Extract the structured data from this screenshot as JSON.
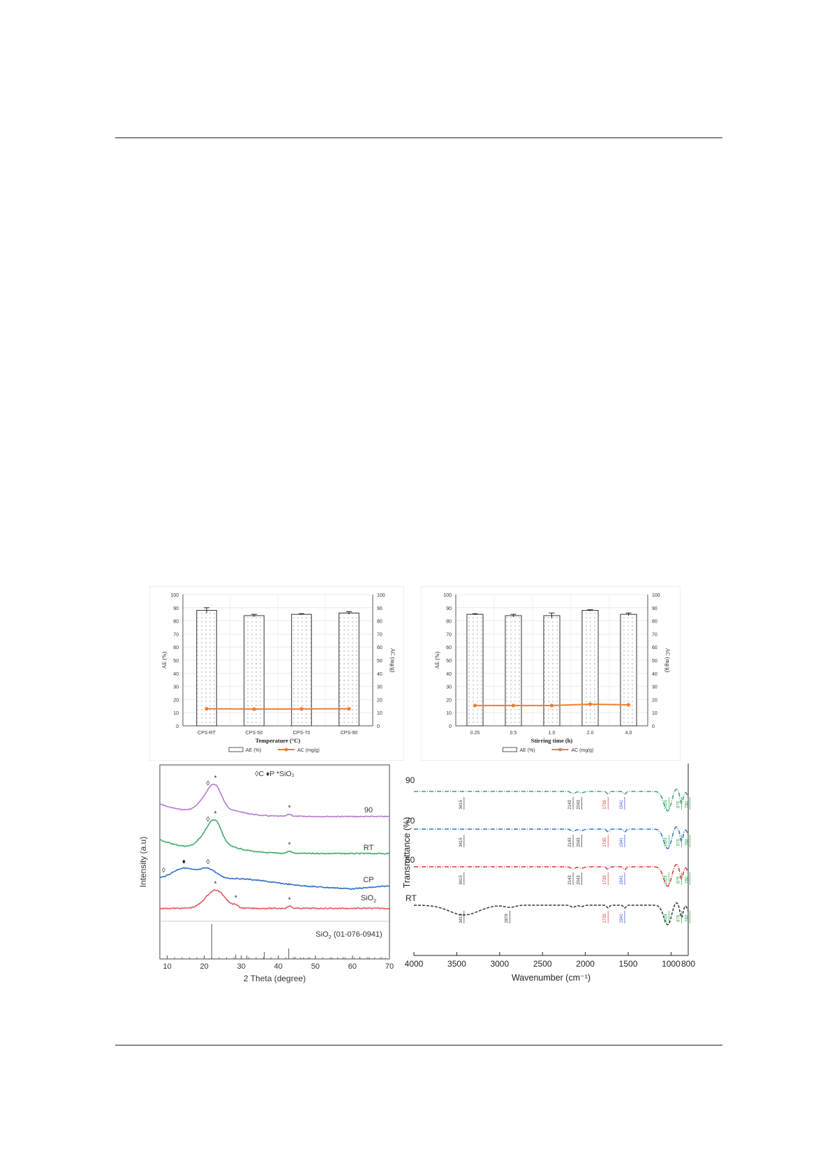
{
  "colors": {
    "bar_fill": "#ffffff",
    "bar_dots": "#9a9a9a",
    "bar_edge": "#333333",
    "ac_line": "#ed7d31",
    "xrd_90": "#b57bd6",
    "xrd_rt": "#3daa6a",
    "xrd_cp": "#2f6fc6",
    "xrd_sio2": "#e4585a",
    "xrd_ref": "#555555",
    "ftir_90": "#3a9e6e",
    "ftir_70": "#2f6fc6",
    "ftir_50": "#e03030",
    "ftir_rt": "#333333"
  },
  "chart_data": [
    {
      "id": "a",
      "type": "bar",
      "categories": [
        "CPS-RT",
        "CPS-50",
        "CPS-70",
        "CPS-90"
      ],
      "xlabel": "Temperature (°C)",
      "ylabel": "AE (%)",
      "y2label": "AC (mg/g)",
      "ylim": [
        0,
        100
      ],
      "y2lim": [
        0,
        100
      ],
      "yticks": [
        "0",
        "10",
        "20",
        "30",
        "40",
        "50",
        "60",
        "70",
        "80",
        "90",
        "100"
      ],
      "series": [
        {
          "name": "AE (%)",
          "kind": "bar",
          "values": [
            88,
            84,
            85,
            86
          ],
          "errors": [
            2,
            1,
            0.5,
            1
          ]
        },
        {
          "name": "AC (mg/g)",
          "kind": "line",
          "axis": "right",
          "values": [
            13,
            12.8,
            12.9,
            13
          ]
        }
      ],
      "legend": "bottom"
    },
    {
      "id": "b",
      "type": "bar",
      "categories": [
        "0.25",
        "0.5",
        "1.0",
        "2.0",
        "4.0"
      ],
      "xlabel": "Stirring time (h)",
      "ylabel": "AE (%)",
      "y2label": "AC (mg/g)",
      "ylim": [
        0,
        100
      ],
      "y2lim": [
        0,
        100
      ],
      "yticks": [
        "0",
        "10",
        "20",
        "30",
        "40",
        "50",
        "60",
        "70",
        "80",
        "90",
        "100"
      ],
      "series": [
        {
          "name": "AE (%)",
          "kind": "bar",
          "values": [
            85,
            84,
            84,
            88,
            85
          ],
          "errors": [
            0.5,
            1,
            2,
            0.5,
            1
          ]
        },
        {
          "name": "AC (mg/g)",
          "kind": "line",
          "axis": "right",
          "values": [
            15.5,
            15.5,
            15.5,
            16.5,
            16
          ]
        }
      ],
      "legend": "bottom"
    },
    {
      "id": "c",
      "type": "line",
      "xlabel": "2 Theta (degree)",
      "ylabel": "Intensity (a.u)",
      "xlim": [
        8,
        70
      ],
      "xticks": [
        "10",
        "20",
        "30",
        "40",
        "50",
        "60",
        "70"
      ],
      "legend_marks": [
        "◊C",
        "♦P",
        "*SiO2"
      ],
      "series": [
        {
          "name": "90",
          "peaks": [
            21,
            23,
            43
          ]
        },
        {
          "name": "RT",
          "peaks": [
            21,
            23,
            43
          ]
        },
        {
          "name": "CP",
          "peaks": [
            9,
            14.5,
            21
          ]
        },
        {
          "name": "SiO2",
          "peaks": [
            23,
            28.5,
            43
          ]
        },
        {
          "name": "SiO2 (01-076-0941)",
          "sticks": [
            {
              "x": 22.0,
              "h": 100
            },
            {
              "x": 28.5,
              "h": 12
            },
            {
              "x": 31.5,
              "h": 10
            },
            {
              "x": 36.2,
              "h": 20
            },
            {
              "x": 42.8,
              "h": 30
            },
            {
              "x": 44.5,
              "h": 6
            },
            {
              "x": 46.8,
              "h": 5
            },
            {
              "x": 48.5,
              "h": 4
            },
            {
              "x": 54.5,
              "h": 4
            },
            {
              "x": 57.5,
              "h": 5
            },
            {
              "x": 60.5,
              "h": 4
            },
            {
              "x": 62.0,
              "h": 6
            },
            {
              "x": 64.5,
              "h": 5
            },
            {
              "x": 67.5,
              "h": 4
            },
            {
              "x": 69.0,
              "h": 3
            }
          ]
        }
      ]
    },
    {
      "id": "d",
      "type": "line",
      "xlabel": "Wavenumber (cm⁻¹)",
      "ylabel": "Transmittance (%)",
      "xlim": [
        4000,
        800
      ],
      "xticks": [
        "4000",
        "3500",
        "3000",
        "2500",
        "2000",
        "1500",
        "1000",
        "800"
      ],
      "series": [
        {
          "name": "90",
          "bands": [
            3415,
            2143,
            2043,
            1735,
            1541,
            1024,
            878,
            780
          ]
        },
        {
          "name": "70",
          "bands": [
            3415,
            2143,
            2043,
            1735,
            1541,
            1024,
            878,
            780
          ]
        },
        {
          "name": "50",
          "bands": [
            3415,
            2143,
            2043,
            1735,
            1541,
            1024,
            878,
            780
          ]
        },
        {
          "name": "RT",
          "bands": [
            3415,
            2879,
            1735,
            1541,
            1024,
            878,
            780
          ]
        }
      ]
    }
  ]
}
